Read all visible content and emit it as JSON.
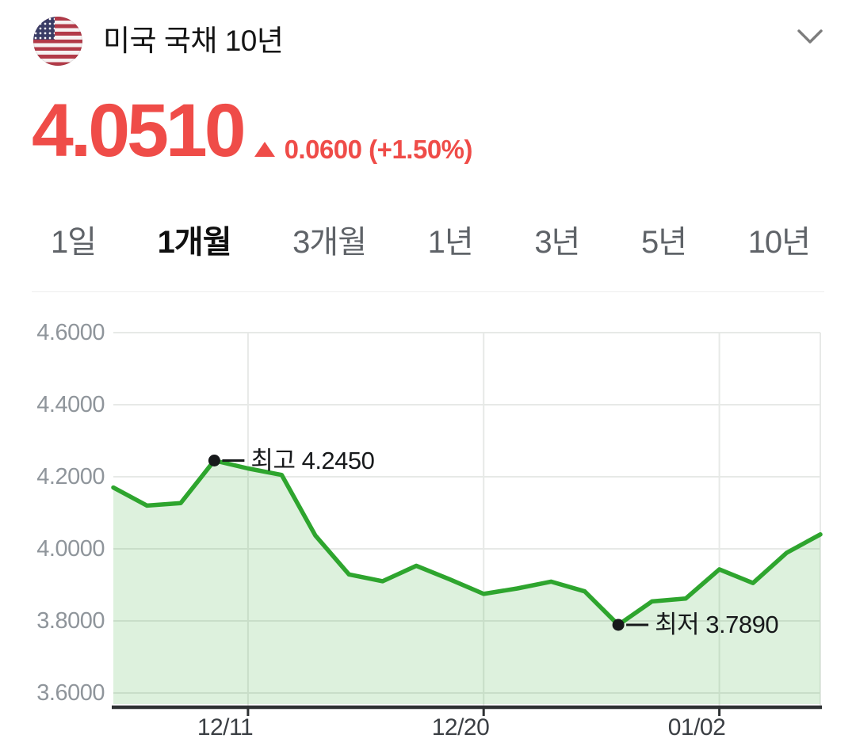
{
  "header": {
    "title": "미국 국채 10년",
    "flag_icon": "us-flag-icon",
    "chevron_icon": "chevron-down-icon"
  },
  "price": {
    "value": "4.0510",
    "direction": "up",
    "change_text": "0.0600 (+1.50%)"
  },
  "tabs": {
    "items": [
      {
        "label": "1일",
        "selected": false
      },
      {
        "label": "1개월",
        "selected": true
      },
      {
        "label": "3개월",
        "selected": false
      },
      {
        "label": "1년",
        "selected": false
      },
      {
        "label": "3년",
        "selected": false
      },
      {
        "label": "5년",
        "selected": false
      },
      {
        "label": "10년",
        "selected": false
      }
    ]
  },
  "chart_data": {
    "type": "area",
    "values": [
      4.17,
      4.12,
      4.127,
      4.245,
      4.223,
      4.205,
      4.037,
      3.929,
      3.91,
      3.953,
      3.915,
      3.875,
      3.89,
      3.909,
      3.882,
      3.789,
      3.854,
      3.862,
      3.943,
      3.905,
      3.989,
      4.04
    ],
    "ylim": [
      3.6,
      4.6
    ],
    "ytick_values": [
      4.6,
      4.4,
      4.2,
      4.0,
      3.8,
      3.6
    ],
    "ytick_labels": [
      "4.6000",
      "4.4000",
      "4.2000",
      "4.0000",
      "3.8000",
      "3.6000"
    ],
    "x_tick_labels": [
      "12/11",
      "12/20",
      "01/02"
    ],
    "x_tick_indexes": [
      4,
      11,
      18
    ],
    "vgrid_indexes": [
      4,
      11,
      18,
      21
    ],
    "annotations": {
      "high": {
        "index": 3,
        "value": 4.245,
        "label": "최고 4.2450"
      },
      "low": {
        "index": 15,
        "value": 3.789,
        "label": "최저 3.7890"
      }
    },
    "grid": true,
    "legend": false,
    "line_color": "#2ea52e",
    "fill_color": "rgba(46,165,46,0.16)",
    "grid_color": "#e7e9e7",
    "axis_color": "#2e3133",
    "annotation_color": "#17191b",
    "up_color": "#ef4c48"
  }
}
